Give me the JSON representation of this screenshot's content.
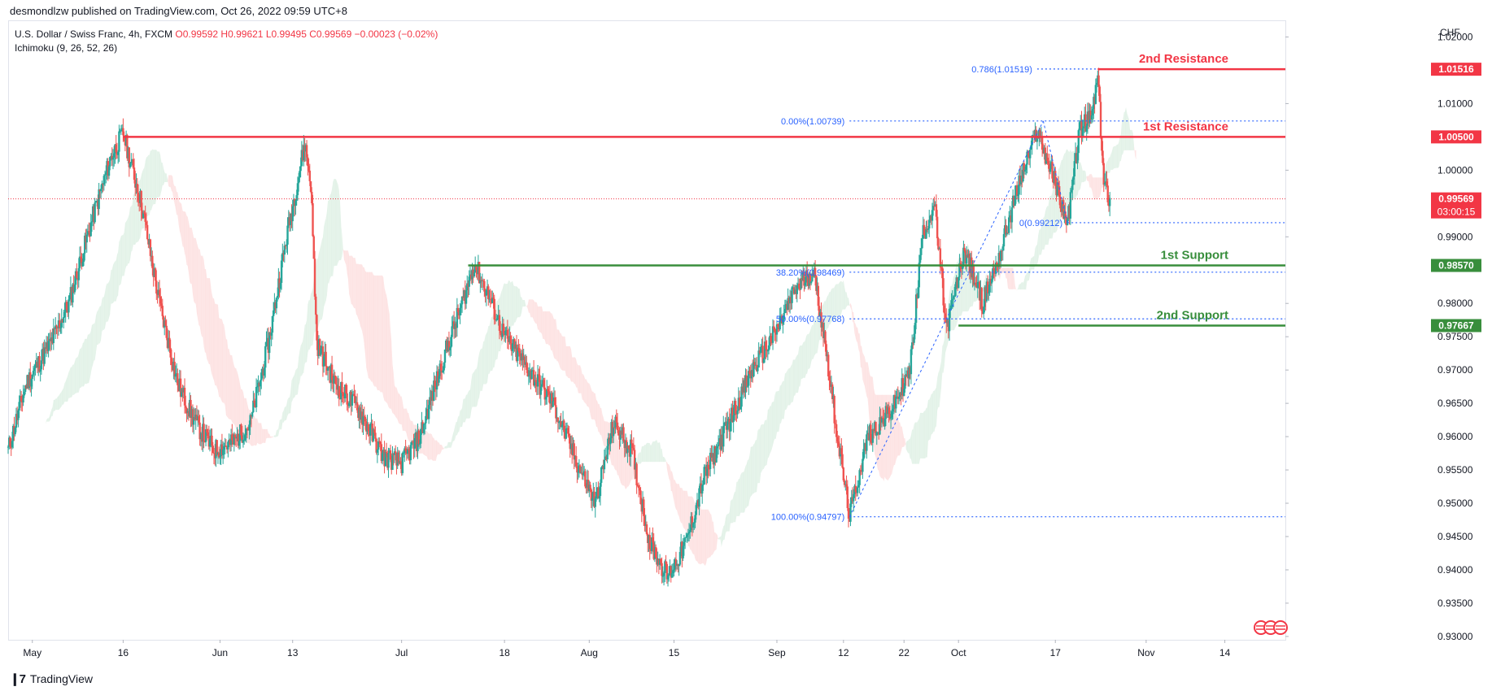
{
  "publisher_line": "desmondlzw published on TradingView.com, Oct 26, 2022 09:59 UTC+8",
  "legend": {
    "symbol": "U.S. Dollar / Swiss Franc, 4h, FXCM",
    "ohlc": "O0.99592 H0.99621 L0.99495 C0.99569 −0.00023 (−0.02%)",
    "indicator": "Ichimoku (9, 26, 52, 26)"
  },
  "currency": "CHF",
  "footer": {
    "brand": "TradingView"
  },
  "colors": {
    "up": "#26a69a",
    "down": "#ef5350",
    "resistance": "#f23645",
    "support": "#388e3c",
    "fib": "#2962ff",
    "cloud_bull": "#e3f2e8",
    "cloud_bear": "#fde3e3"
  },
  "chart_data": {
    "type": "candlestick",
    "symbol": "USDCHF",
    "timeframe": "4h",
    "x_tick_labels": [
      "May",
      "16",
      "Jun",
      "13",
      "Jul",
      "18",
      "Aug",
      "15",
      "Sep",
      "12",
      "22",
      "Oct",
      "17",
      "Nov",
      "14"
    ],
    "y_tick_labels": [
      "1.02000",
      "1.01000",
      "1.00000",
      "0.99000",
      "0.98000",
      "0.97500",
      "0.97000",
      "0.96500",
      "0.96000",
      "0.95500",
      "0.95000",
      "0.94500",
      "0.94000",
      "0.93500",
      "0.93000"
    ],
    "ylim": [
      0.9295,
      1.0225
    ],
    "grid": false,
    "current_price": {
      "value": 0.99569,
      "label": "0.99569",
      "countdown": "03:00:15"
    },
    "path": [
      [
        "Apr 27",
        0.958
      ],
      [
        "Apr 30",
        0.968
      ],
      [
        "May 4",
        0.974
      ],
      [
        "May 7",
        0.98
      ],
      [
        "May 11",
        0.993
      ],
      [
        "May 14",
        1.002
      ],
      [
        "May 16",
        1.0055
      ],
      [
        "May 19",
        0.995
      ],
      [
        "May 22",
        0.98
      ],
      [
        "May 25",
        0.968
      ],
      [
        "May 28",
        0.962
      ],
      [
        "May 31",
        0.958
      ],
      [
        "Jun 3",
        0.959
      ],
      [
        "Jun 6",
        0.962
      ],
      [
        "Jun 9",
        0.974
      ],
      [
        "Jun 12",
        0.99
      ],
      [
        "Jun 15",
        1.004
      ],
      [
        "Jun 16",
        0.998
      ],
      [
        "Jun 17",
        0.974
      ],
      [
        "Jun 20",
        0.968
      ],
      [
        "Jun 24",
        0.964
      ],
      [
        "Jun 28",
        0.957
      ],
      [
        "Jul 1",
        0.956
      ],
      [
        "Jul 4",
        0.96
      ],
      [
        "Jul 8",
        0.972
      ],
      [
        "Jul 11",
        0.98
      ],
      [
        "Jul 13",
        0.986
      ],
      [
        "Jul 15",
        0.982
      ],
      [
        "Jul 18",
        0.975
      ],
      [
        "Jul 22",
        0.97
      ],
      [
        "Jul 26",
        0.965
      ],
      [
        "Jul 30",
        0.956
      ],
      [
        "Aug 2",
        0.95
      ],
      [
        "Aug 5",
        0.962
      ],
      [
        "Aug 8",
        0.958
      ],
      [
        "Aug 11",
        0.944
      ],
      [
        "Aug 14",
        0.939
      ],
      [
        "Aug 17",
        0.944
      ],
      [
        "Aug 20",
        0.954
      ],
      [
        "Aug 24",
        0.962
      ],
      [
        "Aug 28",
        0.97
      ],
      [
        "Sep 1",
        0.976
      ],
      [
        "Sep 4",
        0.982
      ],
      [
        "Sep 7",
        0.985
      ],
      [
        "Sep 9",
        0.974
      ],
      [
        "Sep 11",
        0.96
      ],
      [
        "Sep 13",
        0.948
      ],
      [
        "Sep 16",
        0.96
      ],
      [
        "Sep 20",
        0.964
      ],
      [
        "Sep 23",
        0.97
      ],
      [
        "Sep 25",
        0.99
      ],
      [
        "Sep 27",
        0.995
      ],
      [
        "Sep 29",
        0.976
      ],
      [
        "Oct 2",
        0.988
      ],
      [
        "Oct 5",
        0.98
      ],
      [
        "Oct 8",
        0.988
      ],
      [
        "Oct 11",
        0.998
      ],
      [
        "Oct 14",
        1.006
      ],
      [
        "Oct 17",
        0.998
      ],
      [
        "Oct 19",
        0.992
      ],
      [
        "Oct 21",
        1.006
      ],
      [
        "Oct 23",
        1.008
      ],
      [
        "Oct 24",
        1.014
      ],
      [
        "Oct 25",
        0.998
      ],
      [
        "Oct 26",
        0.9957
      ]
    ],
    "horizontal_levels": [
      {
        "name": "2nd Resistance",
        "value": 1.01516,
        "label": "1.01516",
        "kind": "resistance"
      },
      {
        "name": "1st Resistance",
        "value": 1.005,
        "label": "1.00500",
        "kind": "resistance"
      },
      {
        "name": "1st Support",
        "value": 0.9857,
        "label": "0.98570",
        "kind": "support"
      },
      {
        "name": "2nd Support",
        "value": 0.97667,
        "label": "0.97667",
        "kind": "support"
      }
    ],
    "fibonacci": [
      {
        "label": "0.786(1.01519)",
        "value": 1.01519
      },
      {
        "label": "0.00%(1.00739)",
        "value": 1.00739
      },
      {
        "label": "0(0.99212)",
        "value": 0.99212
      },
      {
        "label": "38.20%(0.98469)",
        "value": 0.98469
      },
      {
        "label": "50.00%(0.97768)",
        "value": 0.97768
      },
      {
        "label": "100.00%(0.94797)",
        "value": 0.94797
      }
    ]
  }
}
